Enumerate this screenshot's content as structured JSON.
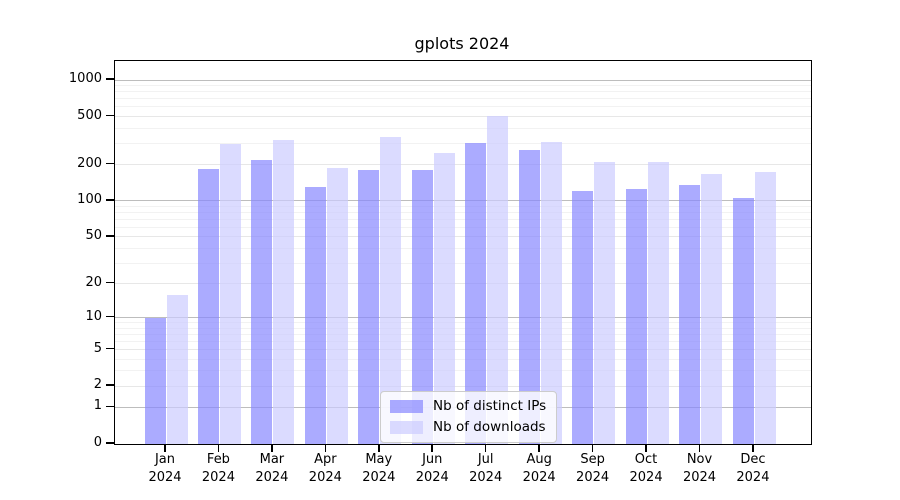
{
  "title": "gplots 2024",
  "chart_data": {
    "type": "bar",
    "title": "gplots 2024",
    "categories": [
      "Jan 2024",
      "Feb 2024",
      "Mar 2024",
      "Apr 2024",
      "May 2024",
      "Jun 2024",
      "Jul 2024",
      "Aug 2024",
      "Sep 2024",
      "Oct 2024",
      "Nov 2024",
      "Dec 2024"
    ],
    "x_tick_month": [
      "Jan",
      "Feb",
      "Mar",
      "Apr",
      "May",
      "Jun",
      "Jul",
      "Aug",
      "Sep",
      "Oct",
      "Nov",
      "Dec"
    ],
    "x_tick_year": "2024",
    "series": [
      {
        "name": "Nb of distinct IPs",
        "color": "rgba(136,136,255,0.7)",
        "values": [
          10,
          186,
          220,
          130,
          180,
          180,
          305,
          264,
          120,
          125,
          136,
          105
        ]
      },
      {
        "name": "Nb of downloads",
        "color": "rgba(204,204,255,0.7)",
        "values": [
          16,
          297,
          320,
          187,
          340,
          249,
          508,
          310,
          210,
          212,
          167,
          173
        ]
      }
    ],
    "y_scale": "log1p",
    "y_ticks": [
      0,
      1,
      2,
      5,
      10,
      20,
      50,
      100,
      200,
      500,
      1000
    ],
    "y_decade_ticks": [
      1,
      10,
      100,
      1000
    ],
    "y_minor_ticks": [
      3,
      4,
      6,
      7,
      8,
      9,
      30,
      40,
      60,
      70,
      80,
      90,
      300,
      400,
      600,
      700,
      800,
      900
    ],
    "y_axis_top_value": 1437,
    "grid": true,
    "legend_position": "lower center inside plot",
    "colors": {
      "distinct_ips": "rgba(136,136,255,0.7)",
      "downloads": "rgba(204,204,255,0.7)"
    }
  }
}
